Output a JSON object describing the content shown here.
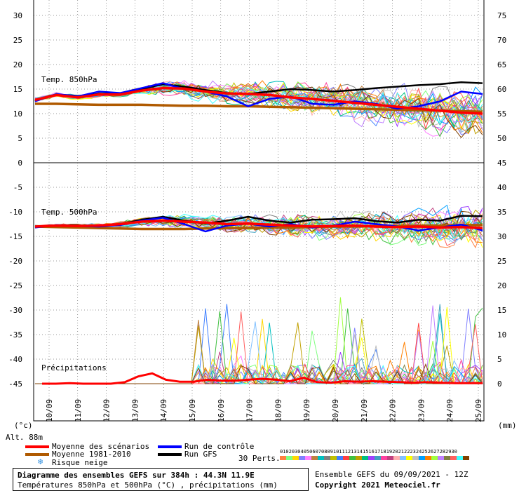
{
  "chart_data": {
    "type": "line",
    "title": "Diagramme des ensembles GEFS sur 384h : 44.3N 11.9E",
    "subtitle": "Températures 850hPa et 500hPa (°C) , précipitations (mm)",
    "x_ticks": [
      "10/09",
      "11/09",
      "12/09",
      "13/09",
      "14/09",
      "15/09",
      "16/09",
      "17/09",
      "18/09",
      "19/09",
      "20/09",
      "21/09",
      "22/09",
      "23/09",
      "24/09",
      "25/09"
    ],
    "left_axis_label": "(°c)",
    "right_axis_label": "(mm)",
    "altitude": "Alt. 88m",
    "top_panel": {
      "label": "Temp. 850hPa",
      "left_ticks": [
        30,
        25,
        20,
        15,
        10,
        5,
        0
      ],
      "right_ticks": [
        75,
        70,
        65,
        60,
        55,
        50,
        45
      ],
      "series": [
        {
          "name": "Moyenne des scénarios",
          "color": "#ff0000",
          "values": [
            12.8,
            13.8,
            13.3,
            13.9,
            13.9,
            14.7,
            15.2,
            15.1,
            14.5,
            14.1,
            14.0,
            13.8,
            13.3,
            13.0,
            12.6,
            12.2,
            11.8,
            11.4,
            11.0,
            10.6,
            10.2,
            10.0
          ]
        },
        {
          "name": "Moyenne 1981-2010",
          "color": "#b05a00",
          "values": [
            12.0,
            12.0,
            11.9,
            11.8,
            11.8,
            11.8,
            11.7,
            11.6,
            11.6,
            11.5,
            11.5,
            11.4,
            11.3,
            11.2,
            11.1,
            11.0,
            10.9,
            10.8,
            10.7,
            10.6,
            10.5,
            10.4
          ]
        },
        {
          "name": "Run de contrôle",
          "color": "#0000ff",
          "values": [
            12.5,
            14.0,
            13.5,
            14.5,
            14.2,
            15.2,
            16.2,
            15.0,
            14.5,
            13.5,
            11.5,
            13.0,
            13.5,
            12.0,
            11.8,
            12.5,
            12.0,
            11.0,
            11.5,
            12.5,
            14.5,
            14.0
          ]
        },
        {
          "name": "Run GFS",
          "color": "#000000",
          "values": [
            12.6,
            13.9,
            13.6,
            14.0,
            14.1,
            15.0,
            16.0,
            15.5,
            14.8,
            14.2,
            14.0,
            14.5,
            15.0,
            14.8,
            14.5,
            14.8,
            15.2,
            15.5,
            15.8,
            16.0,
            16.4,
            16.2
          ]
        }
      ]
    },
    "bottom_panel": {
      "label": "Temp. 500hPa",
      "precip_label": "Précipitations",
      "left_ticks": [
        0,
        -5,
        -10,
        -15,
        -20,
        -25,
        -30,
        -35,
        -40,
        -45
      ],
      "right_ticks": [
        45,
        40,
        35,
        30,
        25,
        20,
        15,
        10,
        5,
        0
      ],
      "series": [
        {
          "name": "Moyenne des scénarios",
          "color": "#ff0000",
          "values": [
            -13.0,
            -12.8,
            -12.9,
            -12.8,
            -12.5,
            -12.0,
            -11.8,
            -12.0,
            -12.2,
            -12.5,
            -12.4,
            -12.6,
            -12.8,
            -13.0,
            -12.9,
            -12.8,
            -13.0,
            -13.1,
            -13.0,
            -13.2,
            -13.1,
            -13.3
          ]
        },
        {
          "name": "Moyenne 1981-2010",
          "color": "#b05a00",
          "values": [
            -13.0,
            -13.1,
            -13.2,
            -13.3,
            -13.4,
            -13.5,
            -13.5,
            -13.5,
            -13.4,
            -13.3,
            -13.3,
            -13.2,
            -13.2,
            -13.1,
            -13.0,
            -13.0,
            -12.9,
            -12.9,
            -12.8,
            -12.8,
            -12.7,
            -12.7
          ]
        },
        {
          "name": "Run de contrôle",
          "color": "#0000ff",
          "values": [
            -13.2,
            -12.7,
            -12.9,
            -13.0,
            -12.7,
            -11.8,
            -11.2,
            -12.5,
            -14.0,
            -12.8,
            -12.4,
            -13.0,
            -12.5,
            -13.2,
            -12.8,
            -12.0,
            -12.5,
            -13.0,
            -13.8,
            -13.2,
            -12.6,
            -13.8
          ]
        },
        {
          "name": "Run GFS",
          "color": "#000000",
          "values": [
            -13.1,
            -12.7,
            -12.8,
            -12.9,
            -12.6,
            -11.6,
            -11.0,
            -11.8,
            -12.4,
            -11.8,
            -11.0,
            -11.8,
            -12.2,
            -11.6,
            -11.5,
            -11.3,
            -11.9,
            -12.2,
            -11.6,
            -11.8,
            -10.8,
            -10.9
          ]
        }
      ],
      "precip_mean": [
        0,
        0,
        0.1,
        0,
        0,
        0,
        0.3,
        1.5,
        2.1,
        0.8,
        0.4,
        0.4,
        0.8,
        0.6,
        0.6,
        0.8,
        1.0,
        0.8,
        0.5,
        1.2,
        0.3,
        0.2,
        0.5,
        0.4,
        0.5,
        0.4,
        0.3,
        0.2,
        0.3,
        0.2,
        0.1,
        0.1,
        0.1
      ]
    },
    "legend": [
      {
        "label": "Moyenne des scénarios",
        "color": "#ff0000"
      },
      {
        "label": "Moyenne 1981-2010",
        "color": "#b05a00"
      },
      {
        "label": "Run de contrôle",
        "color": "#0000ff"
      },
      {
        "label": "Run GFS",
        "color": "#000000"
      }
    ],
    "snow_risk": "Risque neige",
    "perturbations_label": "30 Perts.",
    "perturbation_ids": [
      "01",
      "02",
      "03",
      "04",
      "05",
      "06",
      "07",
      "08",
      "09",
      "10",
      "11",
      "12",
      "13",
      "14",
      "15",
      "16",
      "17",
      "18",
      "19",
      "20",
      "21",
      "22",
      "23",
      "24",
      "25",
      "26",
      "27",
      "28",
      "29",
      "30"
    ],
    "perturbation_colors": [
      "#ff8040",
      "#80ff80",
      "#ffd700",
      "#8080ff",
      "#ff80ff",
      "#c08040",
      "#00c0c0",
      "#808080",
      "#c0c000",
      "#4080ff",
      "#ff4040",
      "#40c040",
      "#c0a000",
      "#00c080",
      "#a040ff",
      "#40a0c0",
      "#ff40a0",
      "#c04080",
      "#ffb0b0",
      "#80c0ff",
      "#ffff00",
      "#c0c0c0",
      "#00a0ff",
      "#ff8000",
      "#a0ff40",
      "#c080ff",
      "#808040",
      "#ff6060",
      "#40ffff",
      "#804000"
    ],
    "run_info": "Ensemble GEFS du 09/09/2021 - 12Z",
    "copyright": "Copyright 2021 Meteociel.fr"
  }
}
